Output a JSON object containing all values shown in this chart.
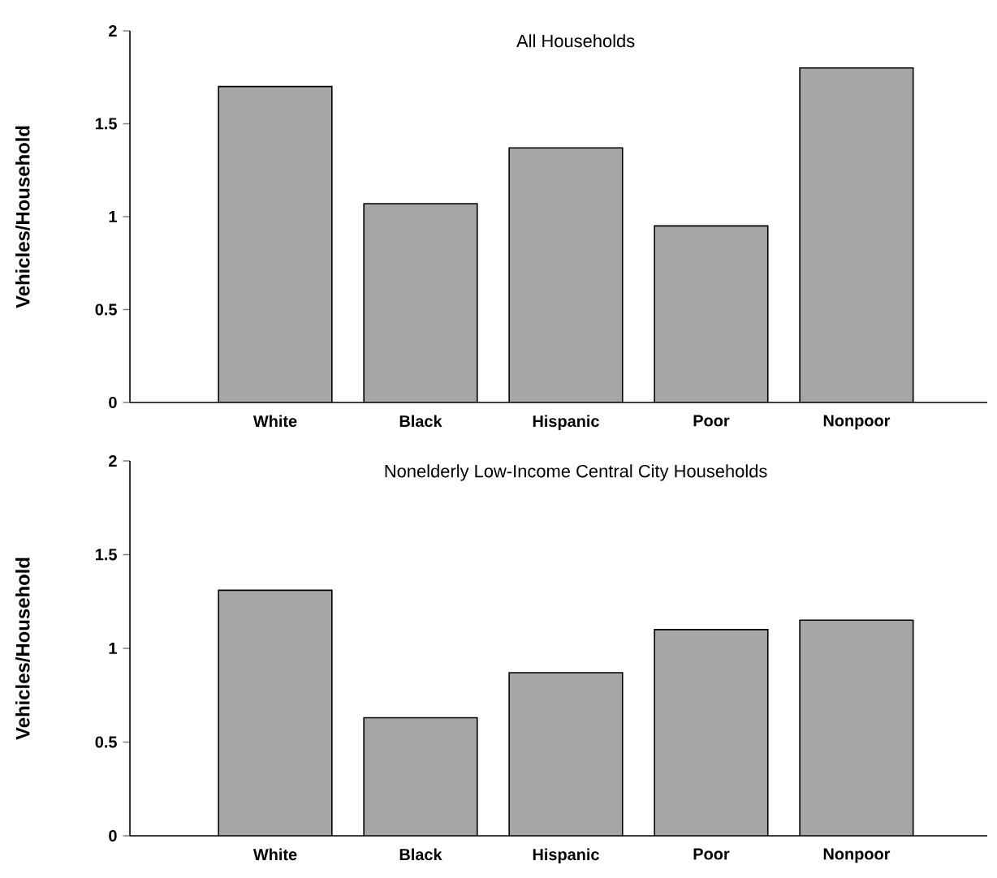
{
  "chart_data": [
    {
      "type": "bar",
      "title": "All Households",
      "ylabel": "Vehicles/Household",
      "categories": [
        "White",
        "Black",
        "Hispanic",
        "Poor",
        "Nonpoor"
      ],
      "values": [
        1.7,
        1.07,
        1.37,
        0.95,
        1.8
      ],
      "color": "#a6a6a6",
      "ylim": [
        0,
        2
      ],
      "yticks": [
        0,
        0.5,
        1,
        1.5,
        2
      ]
    },
    {
      "type": "bar",
      "title": "Nonelderly Low-Income Central City Households",
      "ylabel": "Vehicles/Household",
      "categories": [
        "White",
        "Black",
        "Hispanic",
        "Poor",
        "Nonpoor"
      ],
      "values": [
        1.31,
        0.63,
        0.87,
        1.1,
        1.15
      ],
      "color": "#a6a6a6",
      "ylim": [
        0,
        2
      ],
      "yticks": [
        0,
        0.5,
        1,
        1.5,
        2
      ]
    }
  ]
}
